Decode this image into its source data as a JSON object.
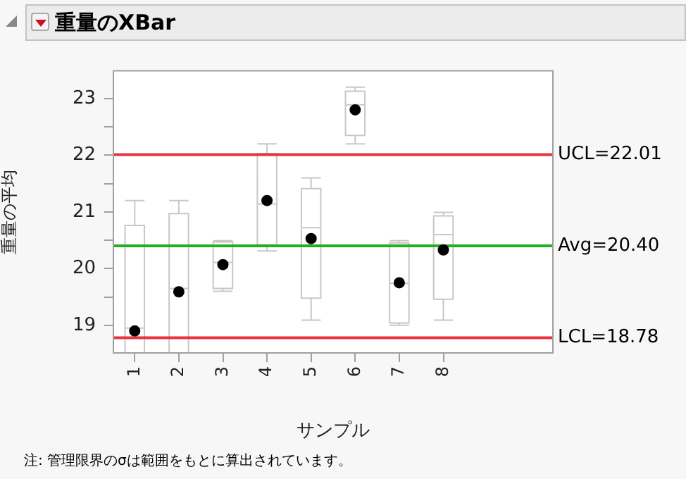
{
  "chart_data": {
    "type": "box",
    "title": "重量のXBar",
    "xlabel": "サンプル",
    "ylabel": "重量の平均",
    "x": [
      1,
      2,
      3,
      4,
      5,
      6,
      7,
      8
    ],
    "boxes": [
      {
        "low": 18.5,
        "q1": 18.5,
        "median": 18.95,
        "q3": 20.76,
        "high": 21.2,
        "mean": 18.9
      },
      {
        "low": 18.5,
        "q1": 18.5,
        "median": 19.65,
        "q3": 20.97,
        "high": 21.2,
        "mean": 19.59
      },
      {
        "low": 19.6,
        "q1": 19.65,
        "median": 20.11,
        "q3": 20.47,
        "high": 20.49,
        "mean": 20.07
      },
      {
        "low": 20.31,
        "q1": 20.42,
        "median": 21.14,
        "q3": 22.03,
        "high": 22.2,
        "mean": 21.2
      },
      {
        "low": 19.09,
        "q1": 19.48,
        "median": 20.72,
        "q3": 21.41,
        "high": 21.6,
        "mean": 20.53
      },
      {
        "low": 22.2,
        "q1": 22.35,
        "median": 22.89,
        "q3": 23.13,
        "high": 23.2,
        "mean": 22.8
      },
      {
        "low": 19.0,
        "q1": 19.04,
        "median": 19.74,
        "q3": 20.45,
        "high": 20.49,
        "mean": 19.75
      },
      {
        "low": 19.09,
        "q1": 19.46,
        "median": 20.6,
        "q3": 20.93,
        "high": 20.99,
        "mean": 20.33
      }
    ],
    "color": "#c8c8c8",
    "xlim": [
      0.5,
      10.5
    ],
    "xticks": [
      1,
      2,
      3,
      4,
      5,
      6,
      7,
      8
    ],
    "ylim": [
      18.5,
      23.5
    ],
    "yticks": [
      19,
      {
        "value": 19.5,
        "label": null
      },
      20,
      {
        "value": 20.5,
        "label": null
      },
      21,
      {
        "value": 21.5,
        "label": null
      },
      22,
      {
        "value": 22.5,
        "label": null
      },
      23
    ],
    "ref_lines": [
      {
        "axis": "y",
        "value": 22.01,
        "label": "UCL=22.01",
        "color": "#e8343f"
      },
      {
        "axis": "y",
        "value": 20.4,
        "label": "Avg=20.40",
        "color": "#22b022"
      },
      {
        "axis": "y",
        "value": 18.78,
        "label": "LCL=18.78",
        "color": "#e8343f"
      }
    ],
    "annotations": [
      "注: 管理限界のσは範囲をもとに算出されています。"
    ],
    "grid": false,
    "legend": false
  }
}
